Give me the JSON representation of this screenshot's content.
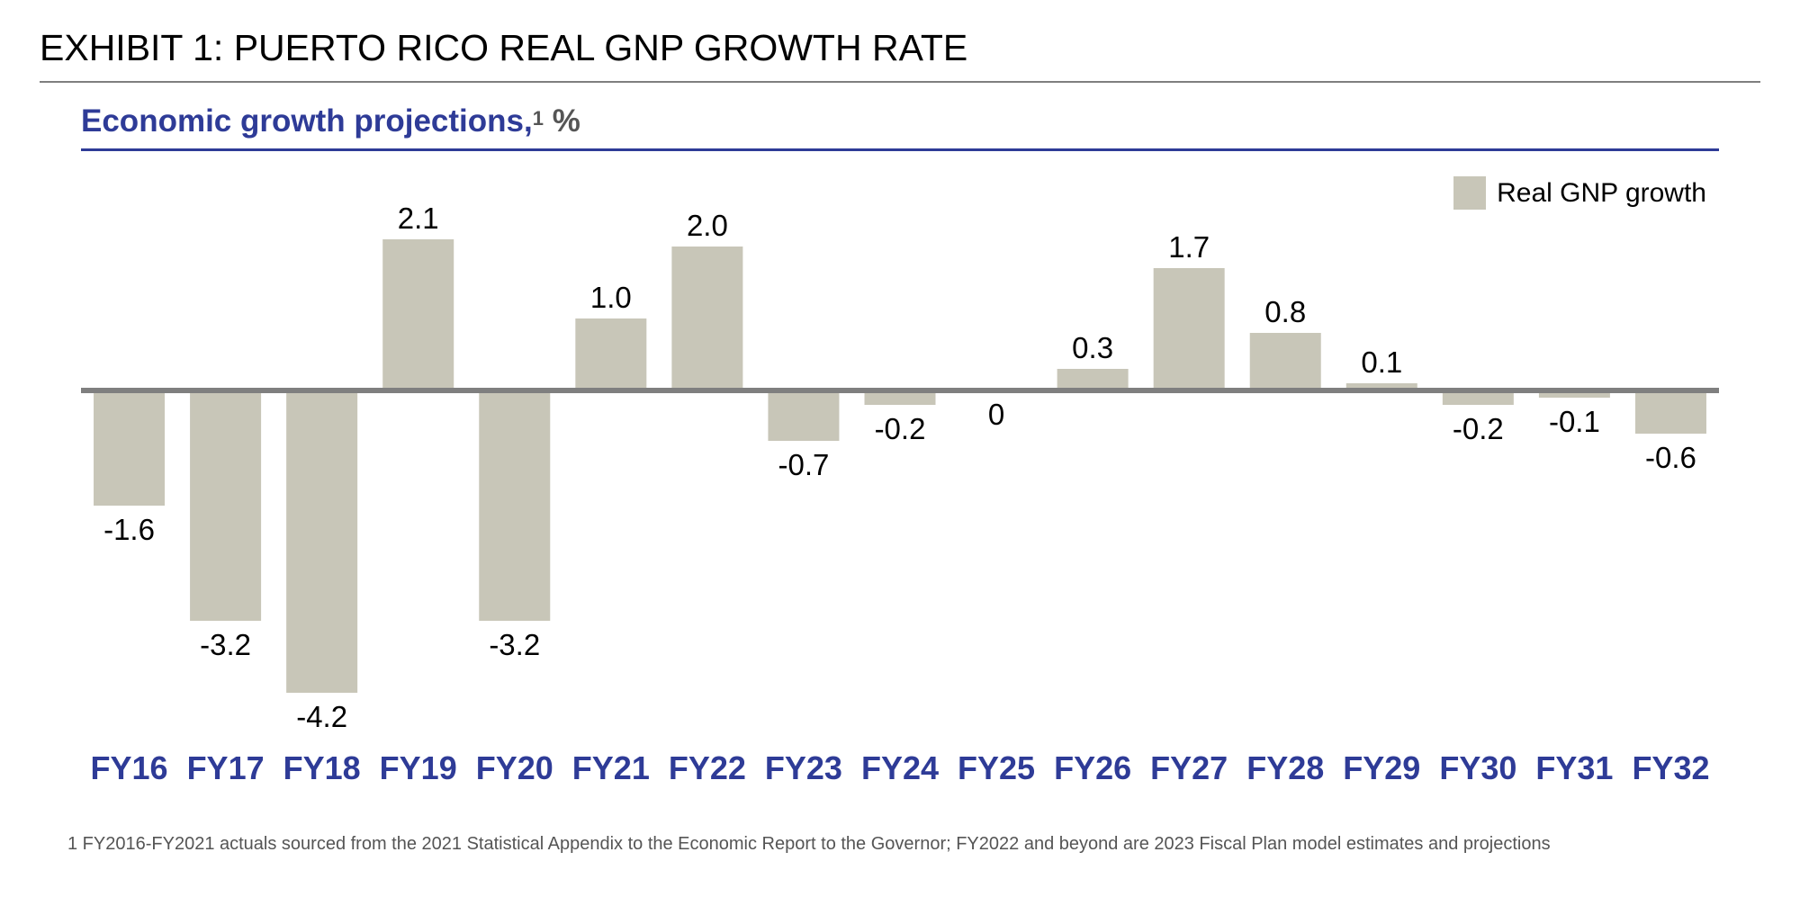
{
  "header": {
    "exhibit_title": "EXHIBIT 1: PUERTO RICO REAL GNP GROWTH RATE"
  },
  "chart_data": {
    "type": "bar",
    "title": "Economic growth projections,",
    "title_footnote_marker": "1",
    "unit": "%",
    "categories": [
      "FY16",
      "FY17",
      "FY18",
      "FY19",
      "FY20",
      "FY21",
      "FY22",
      "FY23",
      "FY24",
      "FY25",
      "FY26",
      "FY27",
      "FY28",
      "FY29",
      "FY30",
      "FY31",
      "FY32"
    ],
    "series": [
      {
        "name": "Real GNP growth",
        "values": [
          -1.6,
          -3.2,
          -4.2,
          2.1,
          -3.2,
          1.0,
          2.0,
          -0.7,
          -0.2,
          0,
          0.3,
          1.7,
          0.8,
          0.1,
          -0.2,
          -0.1,
          -0.6
        ],
        "labels": [
          "-1.6",
          "-3.2",
          "-4.2",
          "2.1",
          "-3.2",
          "1.0",
          "2.0",
          "-0.7",
          "-0.2",
          "0",
          "0.3",
          "1.7",
          "0.8",
          "0.1",
          "-0.2",
          "-0.1",
          "-0.6"
        ],
        "color": "#c8c6b8"
      }
    ],
    "xlabel": "",
    "ylabel": "",
    "ylim": [
      -4.2,
      2.1
    ],
    "grid": false,
    "legend": "top-right",
    "zero_line_color": "#7f7f7f",
    "category_label_color": "#2e3b97"
  },
  "footnote": {
    "text": "1  FY2016-FY2021 actuals sourced from the 2021 Statistical Appendix to the Economic Report to the Governor; FY2022 and beyond are 2023 Fiscal Plan model estimates and projections"
  }
}
